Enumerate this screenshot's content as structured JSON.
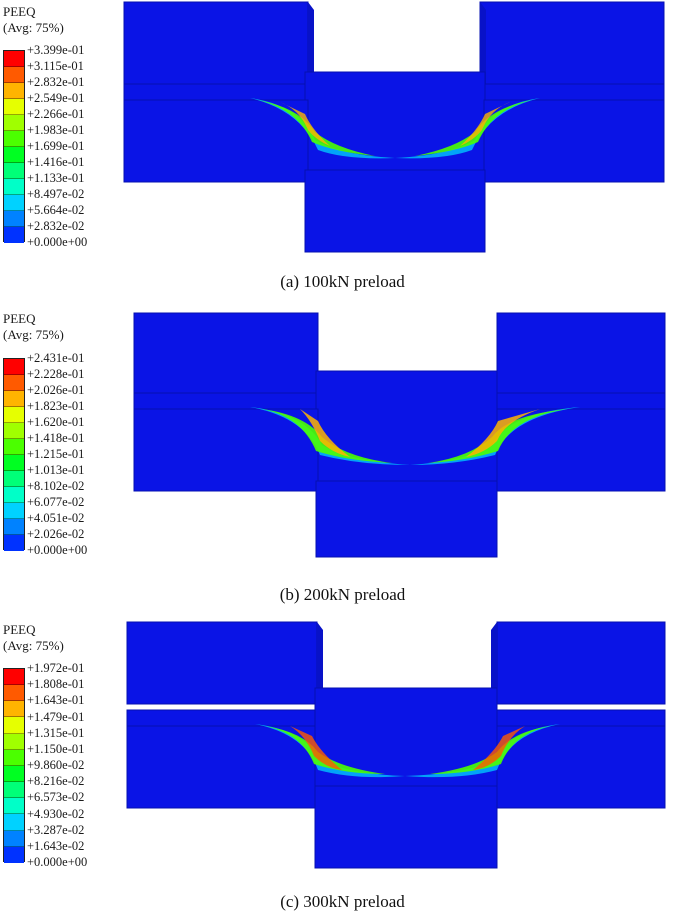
{
  "legend_colors": [
    "#ff0000",
    "#ff5a00",
    "#ffb400",
    "#e6ff00",
    "#a0ff00",
    "#4bff00",
    "#00ff22",
    "#00ff78",
    "#00ffc8",
    "#00d2ff",
    "#0082ff",
    "#0032ff"
  ],
  "model_color": "#0a14e6",
  "panels": [
    {
      "title": "PEEQ\n(Avg: 75%)",
      "ticks": [
        "+3.399e-01",
        "+3.115e-01",
        "+2.832e-01",
        "+2.549e-01",
        "+2.266e-01",
        "+1.983e-01",
        "+1.699e-01",
        "+1.416e-01",
        "+1.133e-01",
        "+8.497e-02",
        "+5.664e-02",
        "+2.832e-02",
        "+0.000e+00"
      ],
      "caption": "(a) 100kN preload"
    },
    {
      "title": "PEEQ\n(Avg: 75%)",
      "ticks": [
        "+2.431e-01",
        "+2.228e-01",
        "+2.026e-01",
        "+1.823e-01",
        "+1.620e-01",
        "+1.418e-01",
        "+1.215e-01",
        "+1.013e-01",
        "+8.102e-02",
        "+6.077e-02",
        "+4.051e-02",
        "+2.026e-02",
        "+0.000e+00"
      ],
      "caption": "(b) 200kN preload"
    },
    {
      "title": "PEEQ\n(Avg: 75%)",
      "ticks": [
        "+1.972e-01",
        "+1.808e-01",
        "+1.643e-01",
        "+1.479e-01",
        "+1.315e-01",
        "+1.150e-01",
        "+9.860e-02",
        "+8.216e-02",
        "+6.573e-02",
        "+4.930e-02",
        "+3.287e-02",
        "+1.643e-02",
        "+0.000e+00"
      ],
      "caption": "(c) 300kN preload"
    }
  ]
}
